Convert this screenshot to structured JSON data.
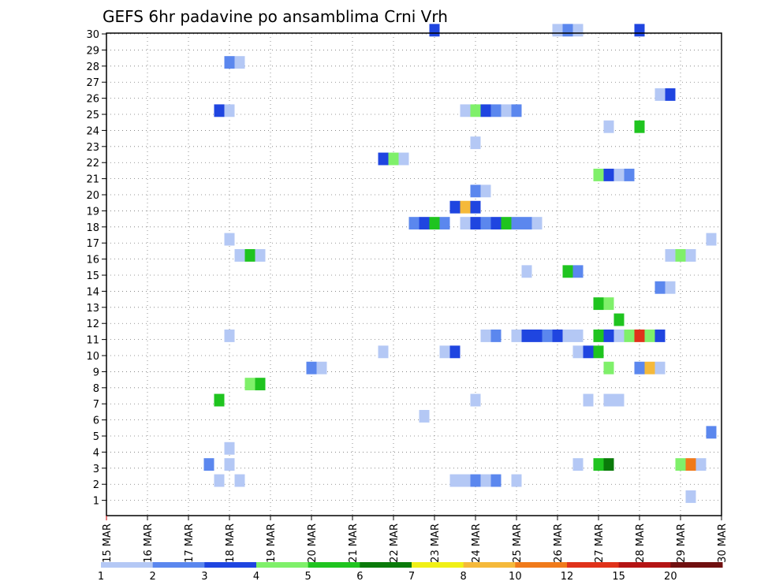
{
  "chart_data": {
    "type": "heatmap",
    "title": "GEFS 6hr padavine po ansamblima Crni Vrh",
    "y_ticks": [
      "1",
      "2",
      "3",
      "4",
      "5",
      "6",
      "7",
      "8",
      "9",
      "10",
      "11",
      "12",
      "13",
      "14",
      "15",
      "16",
      "17",
      "18",
      "19",
      "20",
      "21",
      "22",
      "23",
      "24",
      "25",
      "26",
      "27",
      "28",
      "29",
      "30"
    ],
    "x_ticks": [
      "15 MAR",
      "16 MAR",
      "17 MAR",
      "18 MAR",
      "19 MAR",
      "20 MAR",
      "21 MAR",
      "22 MAR",
      "23 MAR",
      "24 MAR",
      "25 MAR",
      "26 MAR",
      "27 MAR",
      "28 MAR",
      "29 MAR",
      "30 MAR"
    ],
    "grid": true,
    "colorbar": {
      "labels": [
        "1",
        "2",
        "3",
        "4",
        "5",
        "6",
        "7",
        "8",
        "10",
        "12",
        "15",
        "20"
      ],
      "colors": [
        "#b4c8f5",
        "#5b87ee",
        "#1f45e0",
        "#7ff06a",
        "#1fc41f",
        "#0a7a0a",
        "#f0f016",
        "#f5b93a",
        "#f07a1a",
        "#e0321a",
        "#b41414",
        "#701010"
      ]
    },
    "x_unit_note": "day of March (fractional, 6-hour steps)",
    "cells": [
      {
        "member": 30,
        "day": 23.0,
        "class": 3
      },
      {
        "member": 30,
        "day": 26.0,
        "class": 1
      },
      {
        "member": 30,
        "day": 26.25,
        "class": 2
      },
      {
        "member": 30,
        "day": 26.5,
        "class": 1
      },
      {
        "member": 30,
        "day": 28.0,
        "class": 3
      },
      {
        "member": 28,
        "day": 18.0,
        "class": 2
      },
      {
        "member": 28,
        "day": 18.25,
        "class": 1
      },
      {
        "member": 26,
        "day": 28.5,
        "class": 1
      },
      {
        "member": 26,
        "day": 28.75,
        "class": 3
      },
      {
        "member": 25,
        "day": 17.75,
        "class": 3
      },
      {
        "member": 25,
        "day": 18.0,
        "class": 1
      },
      {
        "member": 25,
        "day": 23.75,
        "class": 1
      },
      {
        "member": 25,
        "day": 24.0,
        "class": 4
      },
      {
        "member": 25,
        "day": 24.25,
        "class": 3
      },
      {
        "member": 25,
        "day": 24.5,
        "class": 2
      },
      {
        "member": 25,
        "day": 24.75,
        "class": 1
      },
      {
        "member": 25,
        "day": 25.0,
        "class": 2
      },
      {
        "member": 24,
        "day": 27.25,
        "class": 1
      },
      {
        "member": 24,
        "day": 28.0,
        "class": 5
      },
      {
        "member": 23,
        "day": 24.0,
        "class": 1
      },
      {
        "member": 22,
        "day": 21.75,
        "class": 3
      },
      {
        "member": 22,
        "day": 22.0,
        "class": 4
      },
      {
        "member": 22,
        "day": 22.25,
        "class": 1
      },
      {
        "member": 21,
        "day": 27.0,
        "class": 4
      },
      {
        "member": 21,
        "day": 27.25,
        "class": 3
      },
      {
        "member": 21,
        "day": 27.5,
        "class": 1
      },
      {
        "member": 21,
        "day": 27.75,
        "class": 2
      },
      {
        "member": 20,
        "day": 24.0,
        "class": 2
      },
      {
        "member": 20,
        "day": 24.25,
        "class": 1
      },
      {
        "member": 19,
        "day": 23.5,
        "class": 3
      },
      {
        "member": 19,
        "day": 23.75,
        "class": 8
      },
      {
        "member": 19,
        "day": 24.0,
        "class": 3
      },
      {
        "member": 18,
        "day": 22.5,
        "class": 2
      },
      {
        "member": 18,
        "day": 22.75,
        "class": 3
      },
      {
        "member": 18,
        "day": 23.0,
        "class": 5
      },
      {
        "member": 18,
        "day": 23.25,
        "class": 2
      },
      {
        "member": 18,
        "day": 23.75,
        "class": 1
      },
      {
        "member": 18,
        "day": 24.0,
        "class": 3
      },
      {
        "member": 18,
        "day": 24.25,
        "class": 2
      },
      {
        "member": 18,
        "day": 24.5,
        "class": 3
      },
      {
        "member": 18,
        "day": 24.75,
        "class": 5
      },
      {
        "member": 18,
        "day": 25.0,
        "class": 2
      },
      {
        "member": 18,
        "day": 25.25,
        "class": 2
      },
      {
        "member": 18,
        "day": 25.5,
        "class": 1
      },
      {
        "member": 17,
        "day": 18.0,
        "class": 1
      },
      {
        "member": 17,
        "day": 29.75,
        "class": 1
      },
      {
        "member": 16,
        "day": 18.25,
        "class": 1
      },
      {
        "member": 16,
        "day": 18.5,
        "class": 5
      },
      {
        "member": 16,
        "day": 18.75,
        "class": 1
      },
      {
        "member": 16,
        "day": 28.75,
        "class": 1
      },
      {
        "member": 16,
        "day": 29.0,
        "class": 4
      },
      {
        "member": 16,
        "day": 29.25,
        "class": 1
      },
      {
        "member": 15,
        "day": 25.25,
        "class": 1
      },
      {
        "member": 15,
        "day": 26.25,
        "class": 5
      },
      {
        "member": 15,
        "day": 26.5,
        "class": 2
      },
      {
        "member": 14,
        "day": 28.5,
        "class": 2
      },
      {
        "member": 14,
        "day": 28.75,
        "class": 1
      },
      {
        "member": 13,
        "day": 27.0,
        "class": 5
      },
      {
        "member": 13,
        "day": 27.25,
        "class": 4
      },
      {
        "member": 12,
        "day": 27.5,
        "class": 5
      },
      {
        "member": 11,
        "day": 18.0,
        "class": 1
      },
      {
        "member": 11,
        "day": 24.25,
        "class": 1
      },
      {
        "member": 11,
        "day": 24.5,
        "class": 2
      },
      {
        "member": 11,
        "day": 25.0,
        "class": 1
      },
      {
        "member": 11,
        "day": 25.25,
        "class": 3
      },
      {
        "member": 11,
        "day": 25.5,
        "class": 3
      },
      {
        "member": 11,
        "day": 25.75,
        "class": 2
      },
      {
        "member": 11,
        "day": 26.0,
        "class": 3
      },
      {
        "member": 11,
        "day": 26.25,
        "class": 1
      },
      {
        "member": 11,
        "day": 26.5,
        "class": 1
      },
      {
        "member": 11,
        "day": 27.0,
        "class": 5
      },
      {
        "member": 11,
        "day": 27.25,
        "class": 3
      },
      {
        "member": 11,
        "day": 27.5,
        "class": 1
      },
      {
        "member": 11,
        "day": 27.75,
        "class": 4
      },
      {
        "member": 11,
        "day": 28.0,
        "class": 10
      },
      {
        "member": 11,
        "day": 28.25,
        "class": 4
      },
      {
        "member": 11,
        "day": 28.5,
        "class": 3
      },
      {
        "member": 10,
        "day": 21.75,
        "class": 1
      },
      {
        "member": 10,
        "day": 23.25,
        "class": 1
      },
      {
        "member": 10,
        "day": 23.5,
        "class": 3
      },
      {
        "member": 10,
        "day": 26.5,
        "class": 1
      },
      {
        "member": 10,
        "day": 26.75,
        "class": 3
      },
      {
        "member": 10,
        "day": 27.0,
        "class": 5
      },
      {
        "member": 9,
        "day": 20.0,
        "class": 2
      },
      {
        "member": 9,
        "day": 20.25,
        "class": 1
      },
      {
        "member": 9,
        "day": 27.25,
        "class": 4
      },
      {
        "member": 9,
        "day": 28.0,
        "class": 2
      },
      {
        "member": 9,
        "day": 28.25,
        "class": 8
      },
      {
        "member": 9,
        "day": 28.5,
        "class": 1
      },
      {
        "member": 8,
        "day": 18.5,
        "class": 4
      },
      {
        "member": 8,
        "day": 18.75,
        "class": 5
      },
      {
        "member": 7,
        "day": 17.75,
        "class": 5
      },
      {
        "member": 7,
        "day": 24.0,
        "class": 1
      },
      {
        "member": 7,
        "day": 26.75,
        "class": 1
      },
      {
        "member": 7,
        "day": 27.25,
        "class": 1
      },
      {
        "member": 7,
        "day": 27.5,
        "class": 1
      },
      {
        "member": 6,
        "day": 22.75,
        "class": 1
      },
      {
        "member": 5,
        "day": 29.75,
        "class": 2
      },
      {
        "member": 4,
        "day": 18.0,
        "class": 1
      },
      {
        "member": 3,
        "day": 17.5,
        "class": 2
      },
      {
        "member": 3,
        "day": 18.0,
        "class": 1
      },
      {
        "member": 3,
        "day": 26.5,
        "class": 1
      },
      {
        "member": 3,
        "day": 27.0,
        "class": 5
      },
      {
        "member": 3,
        "day": 27.25,
        "class": 6
      },
      {
        "member": 3,
        "day": 29.0,
        "class": 4
      },
      {
        "member": 3,
        "day": 29.25,
        "class": 9
      },
      {
        "member": 3,
        "day": 29.5,
        "class": 1
      },
      {
        "member": 2,
        "day": 17.75,
        "class": 1
      },
      {
        "member": 2,
        "day": 18.25,
        "class": 1
      },
      {
        "member": 2,
        "day": 23.5,
        "class": 1
      },
      {
        "member": 2,
        "day": 23.75,
        "class": 1
      },
      {
        "member": 2,
        "day": 24.0,
        "class": 2
      },
      {
        "member": 2,
        "day": 24.25,
        "class": 1
      },
      {
        "member": 2,
        "day": 24.5,
        "class": 2
      },
      {
        "member": 2,
        "day": 25.0,
        "class": 1
      },
      {
        "member": 1,
        "day": 29.25,
        "class": 1
      }
    ]
  }
}
